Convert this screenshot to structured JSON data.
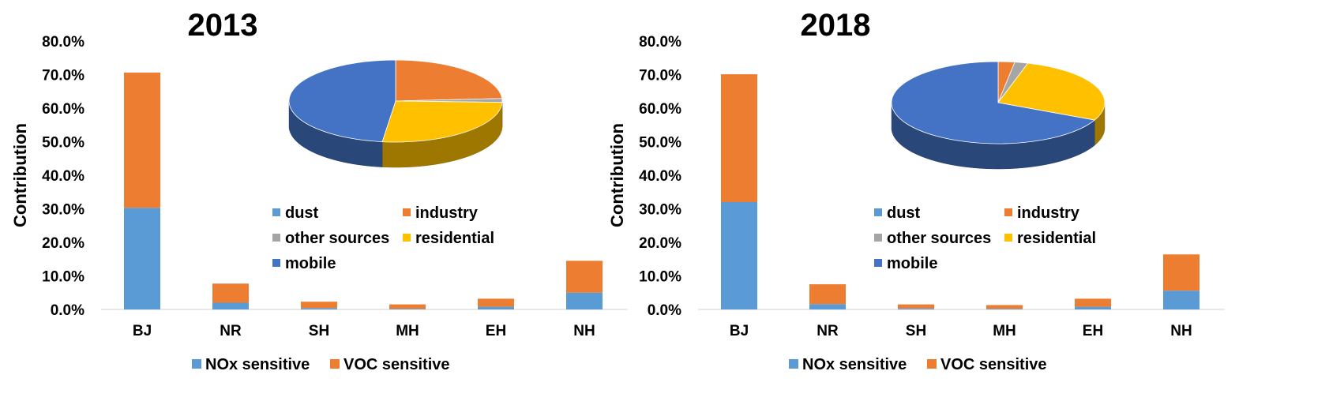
{
  "chart_data": [
    {
      "type": "bar",
      "stacked": true,
      "title": "2013",
      "ylabel": "Contribution",
      "ylim": [
        0,
        80
      ],
      "yticks": [
        "0.0%",
        "10.0%",
        "20.0%",
        "30.0%",
        "40.0%",
        "50.0%",
        "60.0%",
        "70.0%",
        "80.0%"
      ],
      "categories": [
        "BJ",
        "NR",
        "SH",
        "MH",
        "EH",
        "NH"
      ],
      "series": [
        {
          "name": "NOx sensitive",
          "color": "#5b9bd5",
          "values": [
            30.3,
            2.0,
            0.4,
            0.2,
            0.8,
            5.0
          ]
        },
        {
          "name": "VOC sensitive",
          "color": "#ed7d31",
          "values": [
            40.3,
            5.7,
            1.9,
            1.3,
            2.4,
            9.5
          ]
        }
      ],
      "legend_position": "bottom",
      "inset_pie": {
        "type": "pie",
        "labels": [
          "dust",
          "industry",
          "other sources",
          "residential",
          "mobile"
        ],
        "values": [
          0.0,
          24.0,
          1.5,
          26.5,
          48.0
        ],
        "colors": [
          "#5b9bd5",
          "#ed7d31",
          "#a5a5a5",
          "#ffc000",
          "#4472c4"
        ]
      }
    },
    {
      "type": "bar",
      "stacked": true,
      "title": "2018",
      "ylabel": "Contribution",
      "ylim": [
        0,
        80
      ],
      "yticks": [
        "0.0%",
        "10.0%",
        "20.0%",
        "30.0%",
        "40.0%",
        "50.0%",
        "60.0%",
        "70.0%",
        "80.0%"
      ],
      "categories": [
        "BJ",
        "NR",
        "SH",
        "MH",
        "EH",
        "NH"
      ],
      "series": [
        {
          "name": "NOx sensitive",
          "color": "#5b9bd5",
          "values": [
            32.0,
            1.6,
            0.3,
            0.2,
            0.8,
            5.6
          ]
        },
        {
          "name": "VOC sensitive",
          "color": "#ed7d31",
          "values": [
            38.1,
            5.9,
            1.2,
            1.1,
            2.4,
            10.8
          ]
        }
      ],
      "legend_position": "bottom",
      "inset_pie": {
        "type": "pie",
        "labels": [
          "dust",
          "industry",
          "other sources",
          "residential",
          "mobile"
        ],
        "values": [
          0.0,
          2.5,
          2.0,
          27.5,
          68.0
        ],
        "colors": [
          "#5b9bd5",
          "#ed7d31",
          "#a5a5a5",
          "#ffc000",
          "#4472c4"
        ]
      }
    }
  ]
}
